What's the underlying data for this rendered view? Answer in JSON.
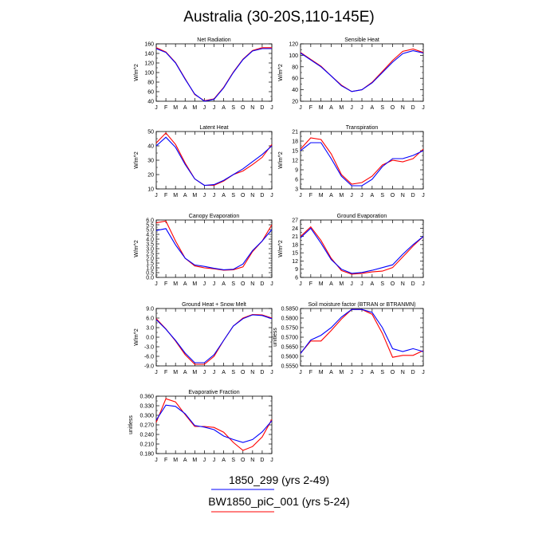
{
  "page_title": "Australia (30-20S,110-145E)",
  "legend": {
    "series_a_label": "1850_299 (yrs 2-49)",
    "series_b_label": "BW1850_piC_001 (yrs 5-24)"
  },
  "colors": {
    "series_a": "#0000ff",
    "series_b": "#ff0000"
  },
  "chart_data": [
    {
      "type": "line",
      "title": "Net Radiation",
      "ylabel": "W/m^2",
      "ylim": [
        40,
        160
      ],
      "yticks": [
        "40",
        "60",
        "80",
        "100",
        "120",
        "140",
        "160"
      ],
      "categories": [
        "J",
        "F",
        "M",
        "A",
        "M",
        "J",
        "J",
        "A",
        "S",
        "O",
        "N",
        "D",
        "J"
      ],
      "series": [
        {
          "values": [
            150,
            142,
            120,
            86,
            55,
            40,
            44,
            68,
            100,
            127,
            145,
            150,
            150
          ]
        },
        {
          "values": [
            152,
            143,
            121,
            87,
            54,
            41,
            45,
            69,
            101,
            128,
            146,
            152,
            152
          ]
        }
      ]
    },
    {
      "type": "line",
      "title": "Sensible Heat",
      "ylabel": "W/m^2",
      "ylim": [
        20,
        120
      ],
      "yticks": [
        "20",
        "40",
        "60",
        "80",
        "100",
        "120"
      ],
      "categories": [
        "J",
        "F",
        "M",
        "A",
        "M",
        "J",
        "J",
        "A",
        "S",
        "O",
        "N",
        "D",
        "J"
      ],
      "series": [
        {
          "values": [
            104,
            92,
            80,
            64,
            47,
            37,
            40,
            52,
            70,
            88,
            103,
            108,
            104
          ]
        },
        {
          "values": [
            105,
            93,
            81,
            64,
            48,
            37,
            40,
            53,
            72,
            91,
            107,
            111,
            105
          ]
        }
      ]
    },
    {
      "type": "line",
      "title": "Latent Heat",
      "ylabel": "W/m^2",
      "ylim": [
        10,
        50
      ],
      "yticks": [
        "10",
        "20",
        "30",
        "40",
        "50"
      ],
      "categories": [
        "J",
        "F",
        "M",
        "A",
        "M",
        "J",
        "J",
        "A",
        "S",
        "O",
        "N",
        "D",
        "J"
      ],
      "series": [
        {
          "values": [
            40,
            46,
            39,
            27,
            17,
            12.5,
            13,
            16,
            20,
            24,
            29,
            34,
            40
          ]
        },
        {
          "values": [
            42,
            49,
            41,
            28,
            17,
            12.5,
            12.5,
            15.5,
            20,
            22.5,
            27,
            32,
            41
          ]
        }
      ]
    },
    {
      "type": "line",
      "title": "Transpiration",
      "ylabel": "W/m^2",
      "ylim": [
        3,
        21
      ],
      "yticks": [
        "3",
        "6",
        "9",
        "12",
        "15",
        "18",
        "21"
      ],
      "categories": [
        "J",
        "F",
        "M",
        "A",
        "M",
        "J",
        "J",
        "A",
        "S",
        "O",
        "N",
        "D",
        "J"
      ],
      "series": [
        {
          "values": [
            15,
            17.5,
            17.5,
            12.5,
            7,
            4,
            4,
            6,
            10,
            12.5,
            12.5,
            13.5,
            15
          ]
        },
        {
          "values": [
            15.5,
            19,
            18.5,
            14,
            7.5,
            4.5,
            5,
            7,
            10.5,
            12,
            11.5,
            12.5,
            15.5
          ]
        }
      ]
    },
    {
      "type": "line",
      "title": "Canopy Evaporation",
      "ylabel": "W/m^2",
      "ylim": [
        0.0,
        6.0
      ],
      "yticks": [
        "0.0",
        "0.5",
        "1.0",
        "1.5",
        "2.0",
        "2.5",
        "3.0",
        "3.5",
        "4.0",
        "4.5",
        "5.0",
        "5.5",
        "6.0"
      ],
      "categories": [
        "J",
        "F",
        "M",
        "A",
        "M",
        "J",
        "J",
        "A",
        "S",
        "O",
        "N",
        "D",
        "J"
      ],
      "series": [
        {
          "values": [
            4.9,
            5.1,
            3.4,
            2.0,
            1.3,
            1.15,
            0.95,
            0.8,
            0.85,
            1.4,
            2.8,
            3.8,
            5.0
          ]
        },
        {
          "values": [
            5.7,
            5.9,
            3.8,
            2.0,
            1.2,
            1.0,
            0.9,
            0.75,
            0.8,
            1.1,
            2.7,
            3.8,
            5.5
          ]
        }
      ]
    },
    {
      "type": "line",
      "title": "Ground Evaporation",
      "ylabel": "W/m^2",
      "ylim": [
        6,
        27
      ],
      "yticks": [
        "6",
        "9",
        "12",
        "15",
        "18",
        "21",
        "24",
        "27"
      ],
      "categories": [
        "J",
        "F",
        "M",
        "A",
        "M",
        "J",
        "J",
        "A",
        "S",
        "O",
        "N",
        "D",
        "J"
      ],
      "series": [
        {
          "values": [
            20.5,
            24,
            18.5,
            12.5,
            9,
            7.5,
            7.8,
            8.6,
            9.6,
            10.6,
            14.5,
            18,
            21
          ]
        },
        {
          "values": [
            21,
            24.5,
            19.5,
            13,
            8.5,
            7.2,
            7.5,
            8,
            8.3,
            9.6,
            13.5,
            17.5,
            21
          ]
        }
      ]
    },
    {
      "type": "line",
      "title": "Ground Heat + Snow Melt",
      "ylabel": "W/m^2",
      "ylim": [
        -9.0,
        9.0
      ],
      "yticks": [
        "-9.0",
        "-6.0",
        "-3.0",
        "0.0",
        "3.0",
        "6.0",
        "9.0"
      ],
      "categories": [
        "J",
        "F",
        "M",
        "A",
        "M",
        "J",
        "J",
        "A",
        "S",
        "O",
        "N",
        "D",
        "J"
      ],
      "series": [
        {
          "values": [
            5.5,
            2.5,
            -1,
            -5,
            -8,
            -8,
            -5.5,
            -1,
            3.5,
            5.8,
            7,
            6.8,
            5.8
          ]
        },
        {
          "values": [
            5.8,
            2.6,
            -1.2,
            -5.5,
            -8.5,
            -8.5,
            -6,
            -1,
            3.5,
            6,
            7.1,
            7,
            6
          ]
        }
      ]
    },
    {
      "type": "line",
      "title": "Soil moisture factor (BTRAN or BTRANMN)",
      "ylabel": "unitless",
      "ylim": [
        0.555,
        0.585
      ],
      "yticks": [
        "0.5550",
        "0.5600",
        "0.5650",
        "0.5700",
        "0.5750",
        "0.5800",
        "0.5850"
      ],
      "categories": [
        "J",
        "F",
        "M",
        "A",
        "M",
        "J",
        "J",
        "A",
        "S",
        "O",
        "N",
        "D",
        "J"
      ],
      "series": [
        {
          "values": [
            0.5615,
            0.5685,
            0.571,
            0.575,
            0.5805,
            0.5845,
            0.5845,
            0.583,
            0.575,
            0.564,
            0.5625,
            0.564,
            0.5625
          ]
        },
        {
          "values": [
            0.5615,
            0.568,
            0.568,
            0.5735,
            0.5795,
            0.5845,
            0.5845,
            0.582,
            0.572,
            0.5595,
            0.5605,
            0.5605,
            0.563
          ]
        }
      ]
    },
    {
      "type": "line",
      "title": "Evaporative Fraction",
      "ylabel": "unitless",
      "ylim": [
        0.18,
        0.36
      ],
      "yticks": [
        "0.180",
        "0.210",
        "0.240",
        "0.270",
        "0.300",
        "0.330",
        "0.360"
      ],
      "categories": [
        "J",
        "F",
        "M",
        "A",
        "M",
        "J",
        "J",
        "A",
        "S",
        "O",
        "N",
        "D",
        "J"
      ],
      "series": [
        {
          "values": [
            0.285,
            0.332,
            0.328,
            0.305,
            0.268,
            0.263,
            0.255,
            0.235,
            0.224,
            0.215,
            0.224,
            0.248,
            0.283
          ]
        },
        {
          "values": [
            0.278,
            0.352,
            0.342,
            0.302,
            0.265,
            0.265,
            0.262,
            0.247,
            0.215,
            0.19,
            0.202,
            0.232,
            0.287
          ]
        }
      ]
    }
  ]
}
